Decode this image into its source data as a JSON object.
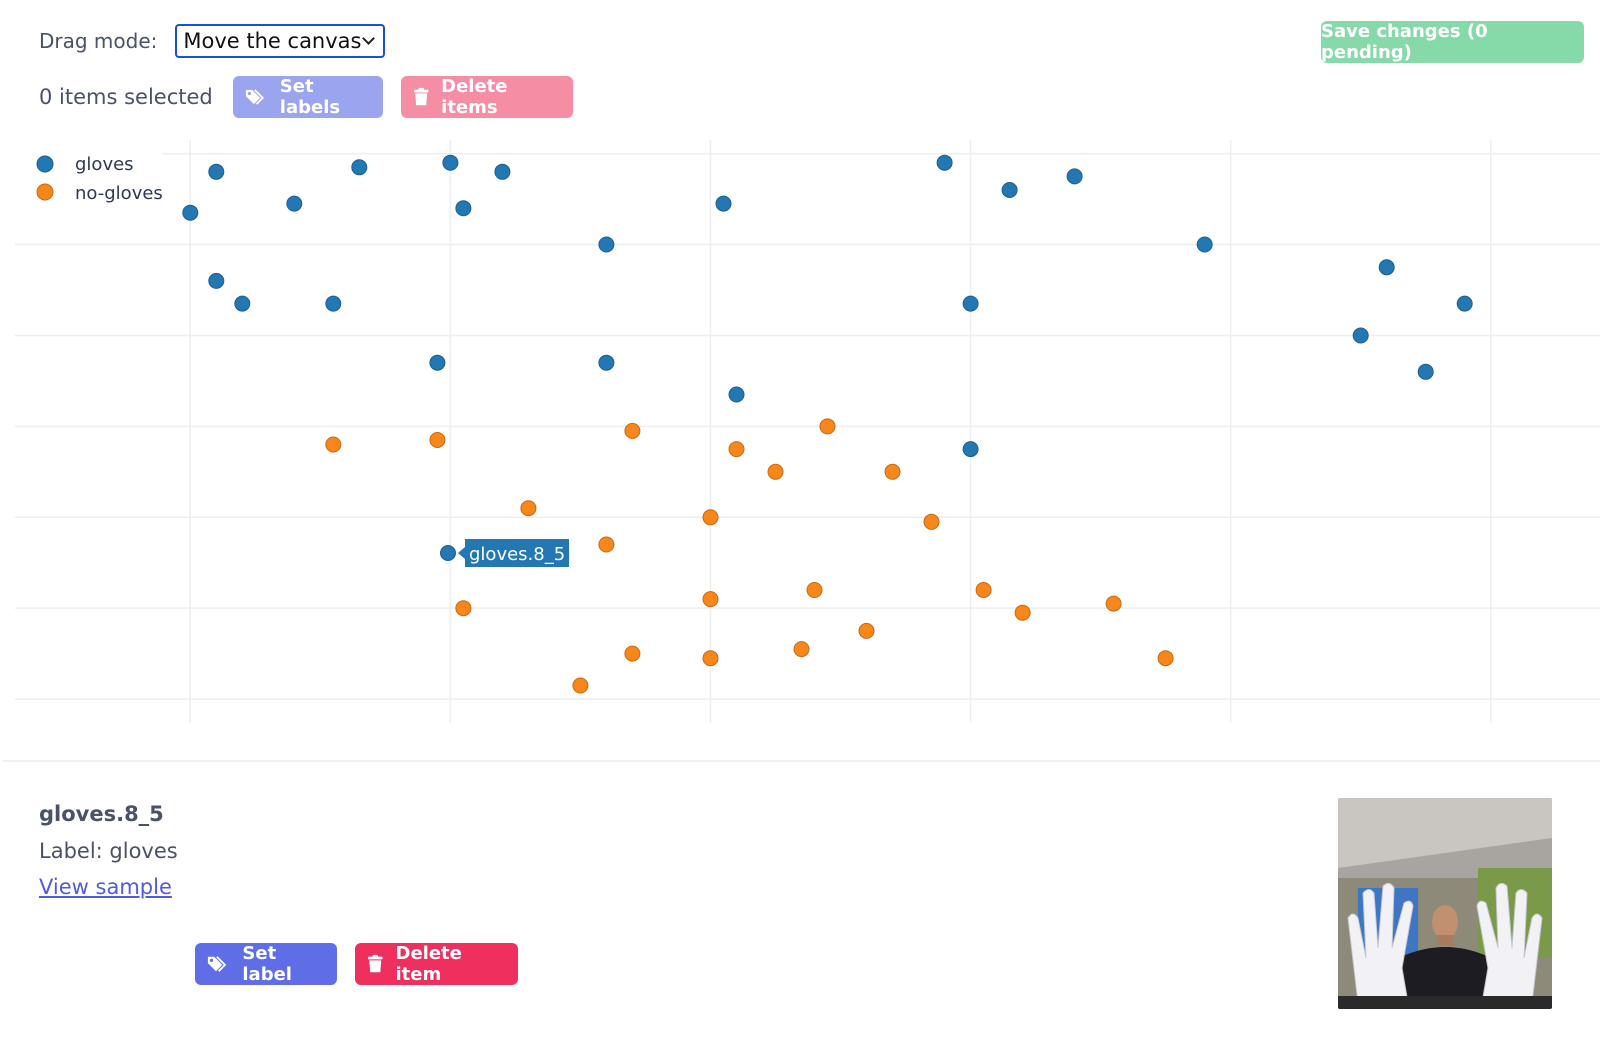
{
  "toolbar": {
    "drag_mode_label": "Drag mode:",
    "drag_mode_value": "Move the canvas",
    "save_label": "Save changes (0 pending)",
    "selected_count": "0 items selected",
    "set_labels": "Set labels",
    "delete_items": "Delete items"
  },
  "colors": {
    "gloves": "#2378b4",
    "no_gloves": "#f7861b",
    "save_button": "#86d9a9",
    "primary": "#5f6ee6",
    "danger": "#ef2f5e"
  },
  "tooltip": {
    "text": "gloves.8_5"
  },
  "detail": {
    "name": "gloves.8_5",
    "label": "Label: gloves",
    "view_sample": "View sample",
    "set_label": "Set label",
    "delete_item": "Delete item"
  },
  "chart_data": {
    "type": "scatter",
    "grid": true,
    "legend": "top-left",
    "xlim": [
      -0.72,
      5.42
    ],
    "ylim": [
      -6.45,
      0.15
    ],
    "series": [
      {
        "name": "gloves",
        "points": [
          [
            0,
            -0.65
          ],
          [
            0.1,
            -0.2
          ],
          [
            0.4,
            -0.55
          ],
          [
            0.65,
            -0.15
          ],
          [
            1.0,
            -0.1
          ],
          [
            1.05,
            -0.6
          ],
          [
            1.2,
            -0.2
          ],
          [
            1.6,
            -1.0
          ],
          [
            2.05,
            -0.55
          ],
          [
            2.9,
            -0.1
          ],
          [
            3.0,
            -1.65
          ],
          [
            3.15,
            -0.4
          ],
          [
            3.4,
            -0.25
          ],
          [
            3.9,
            -1.0
          ],
          [
            4.6,
            -1.25
          ],
          [
            4.5,
            -2.0
          ],
          [
            4.9,
            -1.65
          ],
          [
            4.75,
            -2.4
          ],
          [
            3.0,
            -3.25
          ],
          [
            2.1,
            -2.65
          ],
          [
            1.6,
            -2.3
          ],
          [
            0.95,
            -2.3
          ],
          [
            0.2,
            -1.65
          ],
          [
            0.1,
            -1.4
          ],
          [
            0.55,
            -1.65
          ]
        ]
      },
      {
        "name": "no-gloves",
        "points": [
          [
            0.55,
            -3.2
          ],
          [
            0.95,
            -3.15
          ],
          [
            1.7,
            -3.05
          ],
          [
            2.1,
            -3.25
          ],
          [
            2.45,
            -3.0
          ],
          [
            2.25,
            -3.5
          ],
          [
            2.7,
            -3.5
          ],
          [
            1.3,
            -3.9
          ],
          [
            1.6,
            -4.3
          ],
          [
            2.0,
            -4.0
          ],
          [
            2.85,
            -4.05
          ],
          [
            2.4,
            -4.8
          ],
          [
            2.0,
            -4.9
          ],
          [
            1.35,
            -4.45
          ],
          [
            1.05,
            -5.0
          ],
          [
            3.05,
            -4.8
          ],
          [
            3.55,
            -4.95
          ],
          [
            3.75,
            -5.55
          ],
          [
            3.2,
            -5.05
          ],
          [
            2.6,
            -5.25
          ],
          [
            2.35,
            -5.45
          ],
          [
            2.0,
            -5.55
          ],
          [
            1.5,
            -5.85
          ],
          [
            1.7,
            -5.5
          ]
        ]
      }
    ]
  }
}
